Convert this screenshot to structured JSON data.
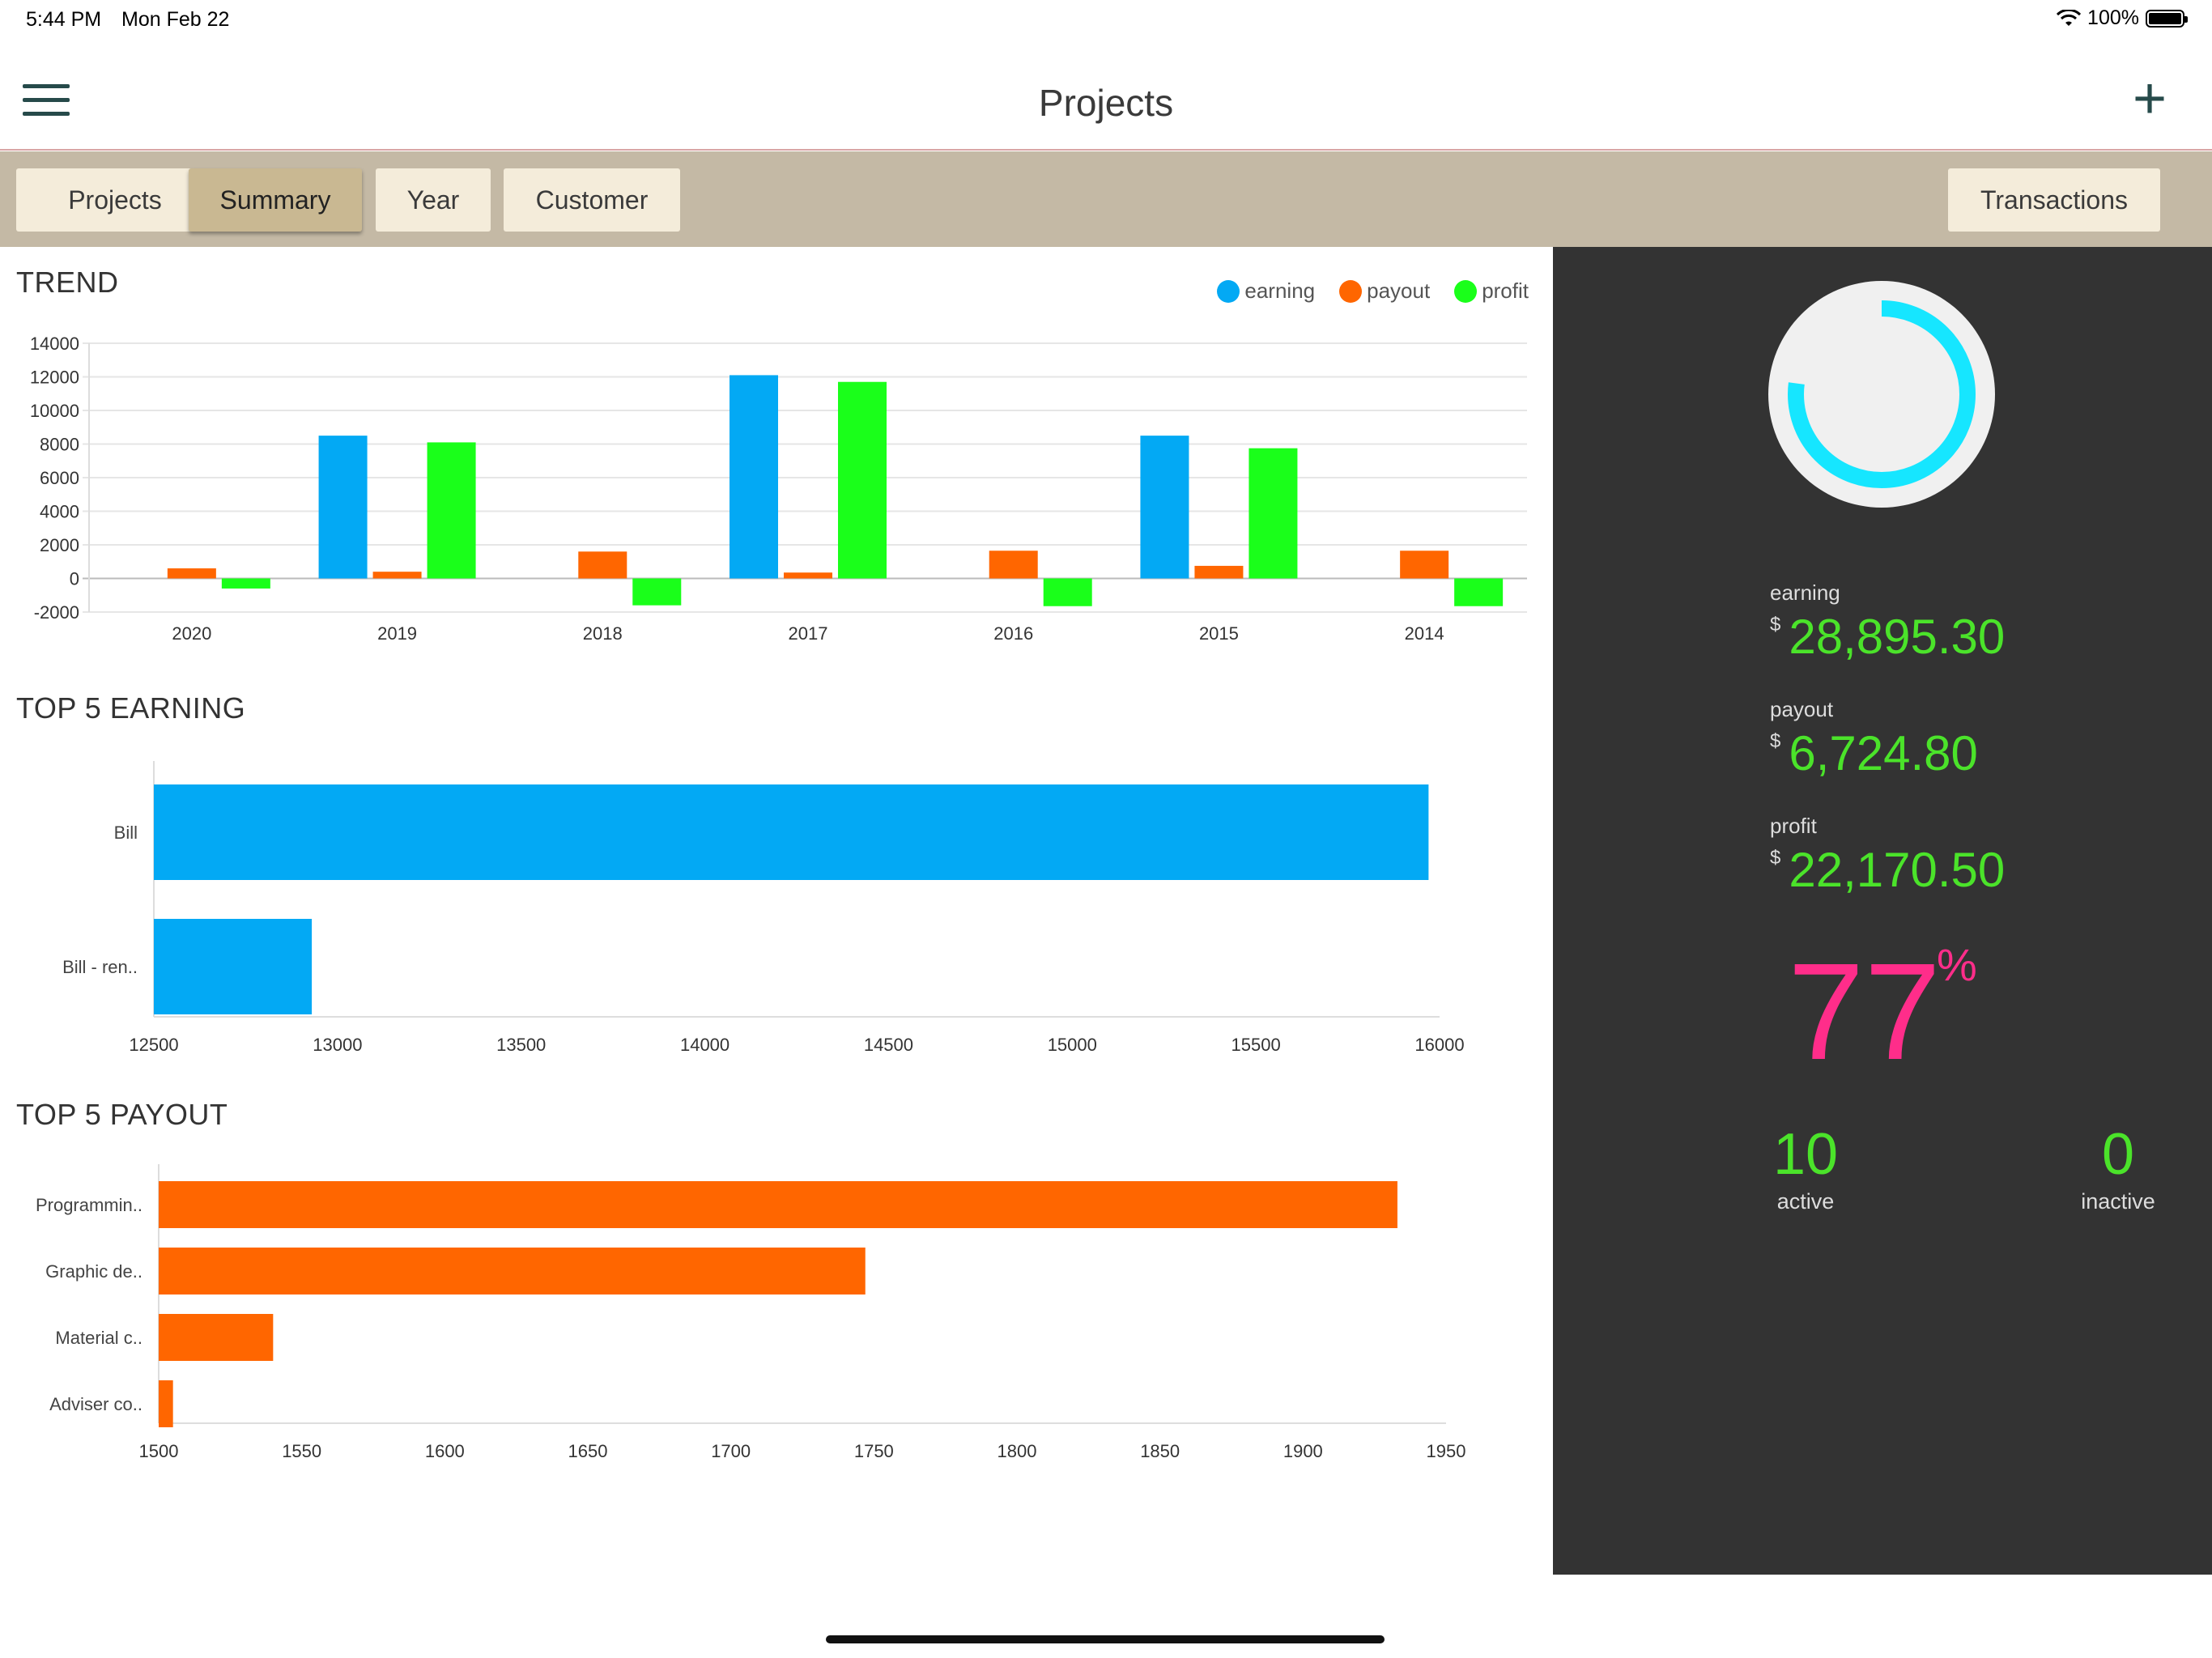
{
  "status": {
    "time": "5:44 PM",
    "date": "Mon Feb 22",
    "battery": "100%"
  },
  "nav": {
    "title": "Projects"
  },
  "tabs": [
    {
      "label": "Projects",
      "active": false
    },
    {
      "label": "Summary",
      "active": true
    },
    {
      "label": "Year",
      "active": false
    },
    {
      "label": "Customer",
      "active": false
    }
  ],
  "transactions_label": "Transactions",
  "sections": {
    "trend": "TREND",
    "top_earning": "TOP 5 EARNING",
    "top_payout": "TOP 5 PAYOUT"
  },
  "colors": {
    "earning": "#03a9f4",
    "payout": "#ff6600",
    "profit": "#1aff1a",
    "accent_text": "#4be32a",
    "percent": "#ff2d8a",
    "ring": "#16e6ff"
  },
  "summary": {
    "earning": {
      "label": "earning",
      "currency": "$",
      "value": "28,895.30"
    },
    "payout": {
      "label": "payout",
      "currency": "$",
      "value": "6,724.80"
    },
    "profit": {
      "label": "profit",
      "currency": "$",
      "value": "22,170.50"
    },
    "percent": {
      "value": "77",
      "sign": "%"
    },
    "active": {
      "value": "10",
      "label": "active"
    },
    "inactive": {
      "value": "0",
      "label": "inactive"
    },
    "ring_fraction": 0.77
  },
  "chart_data": [
    {
      "type": "bar",
      "title": "TREND",
      "categories": [
        "2020",
        "2019",
        "2018",
        "2017",
        "2016",
        "2015",
        "2014"
      ],
      "series": [
        {
          "name": "earning",
          "values": [
            0,
            8500,
            0,
            12100,
            0,
            8500,
            0
          ]
        },
        {
          "name": "payout",
          "values": [
            600,
            400,
            1600,
            350,
            1650,
            750,
            1650
          ]
        },
        {
          "name": "profit",
          "values": [
            -600,
            8100,
            -1600,
            11700,
            -1650,
            7750,
            -1650
          ]
        }
      ],
      "yticks": [
        14000,
        12000,
        10000,
        8000,
        6000,
        4000,
        2000,
        0,
        -2000
      ],
      "ylim": [
        -2000,
        14000
      ],
      "grid": true,
      "legend": "top-right"
    },
    {
      "type": "bar",
      "orientation": "horizontal",
      "title": "TOP 5 EARNING",
      "categories": [
        "Bill",
        "Bill - ren.."
      ],
      "values": [
        15970,
        12930
      ],
      "xticks": [
        12500,
        13000,
        13500,
        14000,
        14500,
        15000,
        15500,
        16000
      ],
      "xlim": [
        12500,
        16000
      ]
    },
    {
      "type": "bar",
      "orientation": "horizontal",
      "title": "TOP 5 PAYOUT",
      "categories": [
        "Programmin..",
        "Graphic de..",
        "Material c..",
        "Adviser co.."
      ],
      "values": [
        1933,
        1747,
        1540,
        1505
      ],
      "xticks": [
        1500,
        1550,
        1600,
        1650,
        1700,
        1750,
        1800,
        1850,
        1900,
        1950
      ],
      "xlim": [
        1500,
        1950
      ]
    }
  ]
}
